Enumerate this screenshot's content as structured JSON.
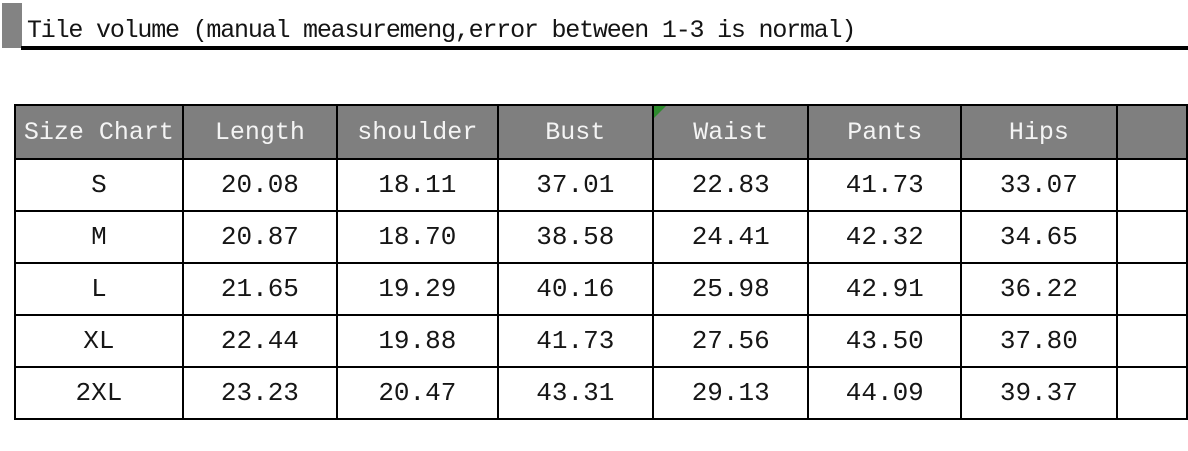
{
  "title": {
    "text": "Tile volume (manual measuremeng,error between 1-3 is normal)"
  },
  "table": {
    "headers": [
      "Size Chart",
      "Length",
      "shoulder",
      "Bust",
      "Waist",
      "Pants",
      "Hips"
    ],
    "rows": [
      {
        "size": "S",
        "values": [
          "20.08",
          "18.11",
          "37.01",
          "22.83",
          "41.73",
          "33.07"
        ]
      },
      {
        "size": "M",
        "values": [
          "20.87",
          "18.70",
          "38.58",
          "24.41",
          "42.32",
          "34.65"
        ]
      },
      {
        "size": "L",
        "values": [
          "21.65",
          "19.29",
          "40.16",
          "25.98",
          "42.91",
          "36.22"
        ]
      },
      {
        "size": "XL",
        "values": [
          "22.44",
          "19.88",
          "41.73",
          "27.56",
          "43.50",
          "37.80"
        ]
      },
      {
        "size": "2XL",
        "values": [
          "23.23",
          "20.47",
          "43.31",
          "29.13",
          "44.09",
          "39.37"
        ]
      }
    ]
  },
  "markers": {
    "waist_corner_flag": "green-triangle"
  },
  "colors": {
    "header_background": "#7f7f7f",
    "header_text": "#f4f4f4",
    "table_border": "#000000",
    "title_square": "#838383",
    "title_underline": "#000000",
    "corner_flag_green": "#2e8b2e",
    "body_text": "#161616"
  },
  "chart_data": {
    "type": "table",
    "title": "Tile volume (manual measuremeng,error between 1-3 is normal)",
    "columns": [
      "Size Chart",
      "Length",
      "shoulder",
      "Bust",
      "Waist",
      "Pants",
      "Hips"
    ],
    "rows": [
      [
        "S",
        20.08,
        18.11,
        37.01,
        22.83,
        41.73,
        33.07
      ],
      [
        "M",
        20.87,
        18.7,
        38.58,
        24.41,
        42.32,
        34.65
      ],
      [
        "L",
        21.65,
        19.29,
        40.16,
        25.98,
        42.91,
        36.22
      ],
      [
        "XL",
        22.44,
        19.88,
        41.73,
        27.56,
        43.5,
        37.8
      ],
      [
        "2XL",
        23.23,
        20.47,
        43.31,
        29.13,
        44.09,
        39.37
      ]
    ],
    "layout": {
      "header_fill": "gray",
      "gridlines": true,
      "note": "empty eighth column clipped at right image edge; green comment flag on Waist header cell"
    }
  }
}
